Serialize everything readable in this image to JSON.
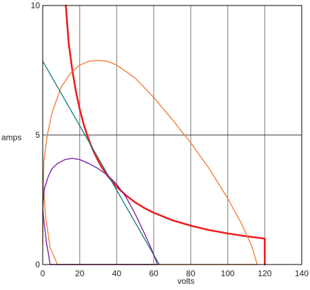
{
  "chart_data": {
    "type": "line",
    "xlabel": "volts",
    "ylabel": "amps",
    "xlim": [
      0,
      140
    ],
    "ylim": [
      0,
      10
    ],
    "x_ticks": [
      0,
      20,
      40,
      60,
      80,
      100,
      120,
      140
    ],
    "y_ticks": [
      0,
      5,
      10
    ],
    "grid": "vertical lines at every x tick, horizontal line at y = 5",
    "legend": "none",
    "series": [
      {
        "color": "#ee1c1c",
        "style": "thick",
        "points": [
          [
            12.5,
            10
          ],
          [
            14,
            8.57
          ],
          [
            16,
            7.5
          ],
          [
            18,
            6.67
          ],
          [
            20,
            6
          ],
          [
            22,
            5.45
          ],
          [
            24,
            5
          ],
          [
            26,
            4.62
          ],
          [
            28,
            4.29
          ],
          [
            30,
            4
          ],
          [
            32,
            3.75
          ],
          [
            35,
            3.43
          ],
          [
            40,
            3
          ],
          [
            45,
            2.67
          ],
          [
            50,
            2.4
          ],
          [
            55,
            2.18
          ],
          [
            60,
            2
          ],
          [
            70,
            1.71
          ],
          [
            80,
            1.5
          ],
          [
            90,
            1.33
          ],
          [
            100,
            1.2
          ],
          [
            110,
            1.09
          ],
          [
            120,
            1
          ],
          [
            120,
            0
          ]
        ]
      },
      {
        "color": "#f07f3c",
        "style": "thin",
        "points": [
          [
            0,
            0.8
          ],
          [
            0.6,
            4
          ],
          [
            2.5,
            5
          ],
          [
            5,
            5.85
          ],
          [
            10,
            6.85
          ],
          [
            15,
            7.38
          ],
          [
            20,
            7.7
          ],
          [
            25,
            7.85
          ],
          [
            30,
            7.88
          ],
          [
            35,
            7.85
          ],
          [
            40,
            7.7
          ],
          [
            50,
            7.2
          ],
          [
            60,
            6.45
          ],
          [
            70,
            5.6
          ],
          [
            80,
            4.7
          ],
          [
            90,
            3.7
          ],
          [
            100,
            2.55
          ],
          [
            108,
            1.5
          ],
          [
            113,
            0.7
          ],
          [
            116,
            0
          ],
          [
            8,
            0
          ],
          [
            4,
            0.65
          ],
          [
            1.5,
            1.9
          ],
          [
            0,
            3.5
          ]
        ]
      },
      {
        "color": "#1f7f7f",
        "style": "thin",
        "points": [
          [
            0,
            7.85
          ],
          [
            63,
            0
          ]
        ]
      },
      {
        "color": "#7f1f9f",
        "style": "thin",
        "points": [
          [
            0,
            2.3
          ],
          [
            1,
            2.95
          ],
          [
            3,
            3.4
          ],
          [
            5,
            3.7
          ],
          [
            8,
            3.9
          ],
          [
            12,
            4.05
          ],
          [
            16,
            4.1
          ],
          [
            20,
            4.05
          ],
          [
            25,
            3.9
          ],
          [
            30,
            3.7
          ],
          [
            35,
            3.45
          ],
          [
            40,
            3.1
          ],
          [
            45,
            2.6
          ],
          [
            50,
            1.95
          ],
          [
            55,
            1.2
          ],
          [
            60,
            0.4
          ],
          [
            62,
            0
          ],
          [
            4,
            0
          ],
          [
            3,
            0.45
          ],
          [
            2,
            0.85
          ],
          [
            0,
            2.1
          ]
        ]
      }
    ]
  }
}
